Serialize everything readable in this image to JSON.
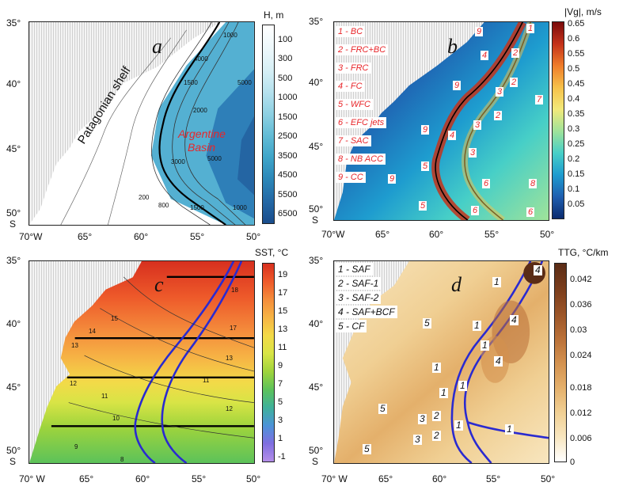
{
  "panels": {
    "a": {
      "letter": "a",
      "colorbar_title": "H, m",
      "colorbar_ticks": [
        "100",
        "300",
        "500",
        "1000",
        "1500",
        "2500",
        "3500",
        "4500",
        "5500",
        "6500"
      ],
      "colorbar_colors": [
        "#ffffff",
        "#eef8fb",
        "#d8f0f6",
        "#b7e2ee",
        "#8fd1e3",
        "#63bcd6",
        "#3fa5c9",
        "#2c87b8",
        "#2468a5",
        "#1a4d8c"
      ],
      "region_labels": {
        "shelf": "Patagonian shelf",
        "basin_line1": "Argentine",
        "basin_line2": "Basin"
      },
      "contour_labels": [
        "1000",
        "4000",
        "5000",
        "1500",
        "2000",
        "3000",
        "5000",
        "1500",
        "200",
        "800",
        "1000"
      ],
      "y_ticks": [
        "35°",
        "40°",
        "45°",
        "50°"
      ],
      "y_unit": "S"
    },
    "b": {
      "letter": "b",
      "colorbar_title": "|Vg|, m/s",
      "colorbar_ticks": [
        "0.65",
        "0.6",
        "0.55",
        "0.5",
        "0.45",
        "0.4",
        "0.35",
        "0.3",
        "0.25",
        "0.2",
        "0.15",
        "0.1",
        "0.05"
      ],
      "colorbar_gradient": [
        "#7a0a0a",
        "#c4321a",
        "#ef7d2a",
        "#f6c14a",
        "#f2e97a",
        "#9fe39a",
        "#47cfc7",
        "#1e9ccf",
        "#1f5fb0",
        "#0b2a6e"
      ],
      "legend": [
        "1 - BC",
        "2 - FRC+BC",
        "3 - FRC",
        "4 - FC",
        "5 - WFC",
        "6 - EFC jets",
        "7 - SAC",
        "8 - NB ACC",
        "9 - CC"
      ],
      "numbers": [
        "1",
        "9",
        "4",
        "2",
        "9",
        "2",
        "3",
        "7",
        "2",
        "4",
        "9",
        "3",
        "3",
        "5",
        "6",
        "9",
        "8",
        "5",
        "6",
        "6"
      ],
      "y_ticks": [
        "35°",
        "40°",
        "45°",
        "50°"
      ],
      "y_unit": "S",
      "x_ticks": [
        "70°W",
        "65°",
        "60°",
        "55°",
        "50°"
      ]
    },
    "c": {
      "letter": "c",
      "colorbar_title": "SST, °C",
      "colorbar_ticks": [
        "19",
        "17",
        "15",
        "13",
        "11",
        "9",
        "7",
        "5",
        "3",
        "1",
        "-1"
      ],
      "colorbar_gradient": [
        "#d7301f",
        "#ee5a2a",
        "#f48d3c",
        "#f6b445",
        "#f3da48",
        "#d8e446",
        "#9fd43c",
        "#5cc25a",
        "#3fb19a",
        "#4c93d8",
        "#7f6ee0",
        "#b48ee8"
      ],
      "contour_labels": [
        "18",
        "15",
        "14",
        "13",
        "12",
        "11",
        "10",
        "9",
        "8",
        "11",
        "13",
        "12",
        "17"
      ],
      "y_ticks": [
        "35°",
        "40°",
        "45°",
        "50°"
      ],
      "y_unit": "S"
    },
    "d": {
      "letter": "d",
      "colorbar_title": "TTG, °C/km",
      "colorbar_ticks": [
        "0.042",
        "0.036",
        "0.03",
        "0.024",
        "0.018",
        "0.012",
        "0.006",
        "0"
      ],
      "colorbar_gradient": [
        "#5a2c16",
        "#7a3d1c",
        "#9a5428",
        "#b97038",
        "#d3914f",
        "#e4b06b",
        "#f0cf93",
        "#f8e6bf",
        "#ffffff"
      ],
      "legend": [
        "1 - SAF",
        "2 - SAF-1",
        "3 - SAF-2",
        "4 - SAF+BCF",
        "5 - CF"
      ],
      "numbers": [
        "4",
        "1",
        "5",
        "1",
        "4",
        "1",
        "4",
        "1",
        "1",
        "1",
        "5",
        "3",
        "2",
        "1",
        "3",
        "2",
        "1",
        "5"
      ],
      "y_ticks": [
        "35°",
        "40°",
        "45°",
        "50°"
      ],
      "y_unit": "S",
      "x_ticks": [
        "70° W",
        "65°",
        "60°",
        "55°",
        "50°"
      ]
    }
  },
  "x_axis_top": [
    "70°W",
    "65°",
    "60°",
    "55°",
    "50°"
  ],
  "x_axis_left_bottom": [
    "70° W",
    "65°",
    "60°",
    "55°",
    "50°"
  ],
  "colors": {
    "front": "#2a2ad0",
    "land_hatch": "#cfcfcf",
    "red_label": "#e8262a"
  }
}
